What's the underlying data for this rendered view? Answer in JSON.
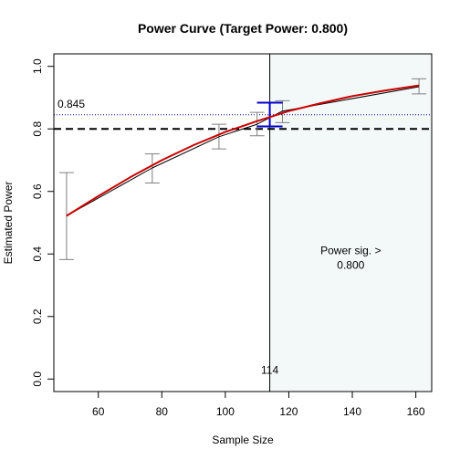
{
  "chart_data": {
    "type": "line",
    "title": "Power Curve (Target Power: 0.800)",
    "xlabel": "Sample Size",
    "ylabel": "Estimated Power",
    "xlim": [
      46,
      165
    ],
    "ylim": [
      -0.04,
      1.04
    ],
    "xticks": [
      60,
      80,
      100,
      120,
      140,
      160
    ],
    "yticks": [
      0.0,
      0.2,
      0.4,
      0.6,
      0.8,
      1.0
    ],
    "xtick_labels": [
      "60",
      "80",
      "100",
      "120",
      "140",
      "160"
    ],
    "ytick_labels": [
      "0.0",
      "0.2",
      "0.4",
      "0.6",
      "0.8",
      "1.0"
    ],
    "target_power": 0.8,
    "threshold_line_value": 0.845,
    "threshold_line_label": "0.845",
    "sample_size_marker": 114,
    "sample_size_marker_label": "114",
    "region_label_line1": "Power sig. >",
    "region_label_line2": "0.800",
    "series": [
      {
        "type": "line",
        "color": "#000000",
        "x": [
          50,
          77,
          98,
          110,
          118,
          161
        ],
        "y": [
          0.522,
          0.675,
          0.775,
          0.815,
          0.857,
          0.935
        ]
      },
      {
        "type": "smooth",
        "color": "#cc0000",
        "x": [
          50,
          60,
          70,
          80,
          90,
          100,
          110,
          120,
          130,
          140,
          150,
          161
        ],
        "y": [
          0.522,
          0.585,
          0.645,
          0.7,
          0.748,
          0.79,
          0.825,
          0.857,
          0.882,
          0.905,
          0.922,
          0.939
        ]
      }
    ],
    "error_bars": [
      {
        "x": 50,
        "low": 0.382,
        "high": 0.66,
        "color": "#808080"
      },
      {
        "x": 77,
        "low": 0.627,
        "high": 0.72,
        "color": "#808080"
      },
      {
        "x": 98,
        "low": 0.736,
        "high": 0.815,
        "color": "#808080"
      },
      {
        "x": 110,
        "low": 0.778,
        "high": 0.853,
        "color": "#808080"
      },
      {
        "x": 118,
        "low": 0.82,
        "high": 0.89,
        "color": "#808080"
      },
      {
        "x": 161,
        "low": 0.912,
        "high": 0.96,
        "color": "#808080"
      },
      {
        "x": 114,
        "low": 0.808,
        "high": 0.884,
        "color": "#0000cc"
      }
    ],
    "colors": {
      "region_fill": "#f3f9f9",
      "target_line": "#000000",
      "threshold_line": "#00008b",
      "marker_line": "#000000"
    },
    "grid": false
  }
}
